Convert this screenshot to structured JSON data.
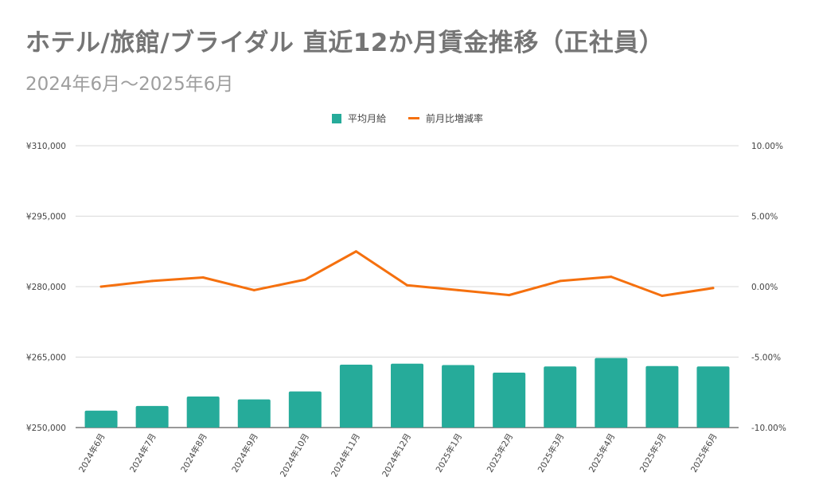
{
  "title": "ホテル/旅館/ブライダル 直近12か月賃金推移（正社員）",
  "subtitle": "2024年6月～2025年6月",
  "colors": {
    "bar": "#26ab9a",
    "line": "#f5700e",
    "grid": "#d9d9d9",
    "axis": "#444444"
  },
  "chart_data": {
    "type": "bar",
    "categories": [
      "2024年6月",
      "2024年7月",
      "2024年8月",
      "2024年9月",
      "2024年10月",
      "2024年11月",
      "2024年12月",
      "2025年1月",
      "2025年2月",
      "2025年3月",
      "2025年4月",
      "2025年5月",
      "2025年6月"
    ],
    "series": [
      {
        "name": "平均月給",
        "type": "bar",
        "axis": "left",
        "values": [
          253600,
          254600,
          256600,
          256000,
          257700,
          263400,
          263600,
          263300,
          261700,
          263000,
          264800,
          263100,
          263000
        ]
      },
      {
        "name": "前月比増減率",
        "type": "line",
        "axis": "right",
        "values": [
          0.0,
          0.4,
          0.65,
          -0.25,
          0.5,
          2.5,
          0.1,
          -0.25,
          -0.6,
          0.4,
          0.7,
          -0.65,
          -0.1
        ]
      }
    ],
    "y_left": {
      "min": 250000,
      "max": 310000,
      "ticks": [
        250000,
        265000,
        280000,
        295000,
        310000
      ],
      "tick_labels": [
        "¥250,000",
        "¥265,000",
        "¥280,000",
        "¥295,000",
        "¥310,000"
      ]
    },
    "y_right": {
      "min": -10,
      "max": 10,
      "ticks": [
        -10,
        -5,
        0,
        5,
        10
      ],
      "tick_labels": [
        "-10.00%",
        "-5.00%",
        "0.00%",
        "5.00%",
        "10.00%"
      ]
    },
    "legend_position": "top-center",
    "grid": true
  }
}
